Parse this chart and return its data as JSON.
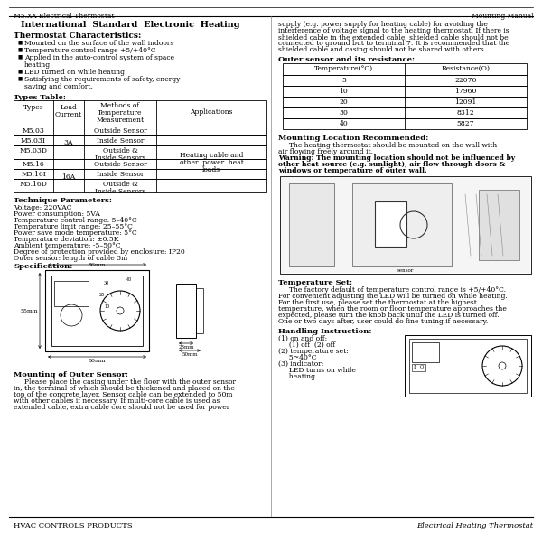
{
  "page_title_left": "M5.XX Electrical Thermostat",
  "page_title_right": "Mounting Manual",
  "header_title": "International  Standard  Electronic  Heating",
  "char_title": "Thermostat Characteristics:",
  "bullets": [
    "Mounted on the surface of the wall indoors",
    "Temperature control range +5/+40°C",
    "Applied in the auto-control system of space\nheating",
    "LED turned on while heating",
    "Satisfying the requirements of safety, energy\nsaving and comfort."
  ],
  "types_table_title": "Types Table:",
  "rows": [
    [
      "M5.03",
      "Outside Sensor"
    ],
    [
      "M5.03I",
      "Inside Sensor"
    ],
    [
      "M5.03D",
      "Outside &\nInside Sensors"
    ],
    [
      "M5.16",
      "Outside Sensor"
    ],
    [
      "M5.16I",
      "Inside Sensor"
    ],
    [
      "M5.16D",
      "Outside &\nInside Sensors"
    ]
  ],
  "load_3a": "3A",
  "load_16a": "16A",
  "app_text": "Heating cable and\nother  power  heat\nloads",
  "technique_title": "Technique Parameters:",
  "technique_lines": [
    "Voltage: 220VAC",
    "Power consumption: 5VA",
    "Temperature control range: 5–40°C",
    "Temperature limit range: 25–55°C",
    "Power save mode temperature: 5°C",
    "Temperature deviation: ±0.5K",
    "Ambient temperature: -5–50°C",
    "Degree of protection provided by enclosure: IP20",
    "Outer sensor: length of cable 3m"
  ],
  "spec_title": "Specification:",
  "dim_80mm": "80mm",
  "dim_86mm": "86mm",
  "dim_55mm": "55mm",
  "dim_23mm": "23mm",
  "dim_50mm": "50mm",
  "mounting_outer_title": "Mounting of Outer Sensor:",
  "mounting_outer_lines": [
    "     Please place the casing under the floor with the outer sensor",
    "in, the terminal of which should be thickened and placed on the",
    "top of the concrete layer. Sensor cable can be extended to 50m",
    "with other cables if necessary. If multi-core cable is used as",
    "extended cable, extra cable core should not be used for power"
  ],
  "right_top_lines": [
    "supply (e.g. power supply for heating cable) for avoiding the",
    "interference of voltage signal to the heating thermostat. If there is",
    "shielded cable in the extended cable, shielded cable should not be",
    "connected to ground but to terminal 7. It is recommended that the",
    "shielded cable and casing should not be shared with others."
  ],
  "outer_sensor_title": "Outer sensor and its resistance:",
  "res_headers": [
    "Temperature(°C)",
    "Resistance(Ω)"
  ],
  "res_rows": [
    [
      "5",
      "22070"
    ],
    [
      "10",
      "17960"
    ],
    [
      "20",
      "12091"
    ],
    [
      "30",
      "8312"
    ],
    [
      "40",
      "5827"
    ]
  ],
  "mount_loc_title": "Mounting Location Recommended:",
  "mount_loc_lines": [
    "     The heating thermostat should be mounted on the wall with",
    "air flowing freely around it."
  ],
  "warning_bold": "Warning: The mounting location should not be influenced by",
  "warning_lines": [
    "other heat source (e.g. sunlight), air flow through doors &",
    "windows or temperature of outer wall."
  ],
  "temp_set_title": "Temperature Set:",
  "temp_set_lines": [
    "     The factory default of temperature control range is +5/+40°C.",
    "For convenient adjusting the LED will be turned on while heating.",
    "For the first use, please set the thermostat at the highest",
    "temperature, when the room or floor temperature approaches the",
    "expected, please turn the knob back until the LED is turned off.",
    "One or two days after, user could do fine tuning if necessary."
  ],
  "handling_title": "Handling Instruction:",
  "handling_lines": [
    "(1) on and off:",
    "     (1) off  (2) off",
    "(2) temperature set:",
    "     5~40°C",
    "(3) indicator:",
    "     LED turns on while",
    "     heating."
  ],
  "footer_left": "HVAC CONTROLS PRODUCTS",
  "footer_right": "Electrical Heating Thermostat",
  "col_sep": 300,
  "lc": 15,
  "rc": 308
}
